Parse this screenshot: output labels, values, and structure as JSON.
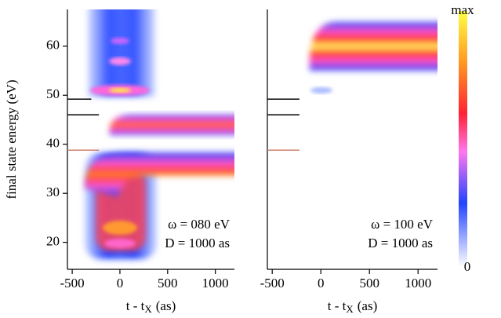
{
  "chart_data": [
    {
      "type": "heatmap",
      "ylabel": "final state energy (eV)",
      "xlabel": {
        "main": "t - t",
        "sub": "X",
        "unit": "(as)"
      },
      "xlim": [
        -550,
        1200
      ],
      "ylim": [
        14.5,
        67.5
      ],
      "xticks": [
        -500,
        0,
        500,
        1000
      ],
      "yticks": [
        20,
        30,
        40,
        50,
        60
      ],
      "annotations": [
        "ω = 080 eV",
        "D = 1000 as"
      ],
      "ref_lines": [
        {
          "y": 49.2,
          "x_end": -300,
          "color": "#000000"
        },
        {
          "y": 46,
          "x_end": -220,
          "color": "#000000"
        },
        {
          "y": 38.8,
          "x_end": -220,
          "color": "#d08070"
        }
      ]
    },
    {
      "type": "heatmap",
      "xlabel": {
        "main": "t - t",
        "sub": "X",
        "unit": "(as)"
      },
      "xlim": [
        -550,
        1200
      ],
      "ylim": [
        14.5,
        67.5
      ],
      "xticks": [
        -500,
        0,
        500,
        1000
      ],
      "annotations": [
        "ω = 100 eV",
        "D = 1000 as"
      ],
      "ref_lines": [
        {
          "y": 49.2,
          "x_end": -220,
          "color": "#000000"
        },
        {
          "y": 46,
          "x_end": -220,
          "color": "#000000"
        },
        {
          "y": 38.8,
          "x_end": -220,
          "color": "#d08070"
        }
      ],
      "colorbar": {
        "max_label": "max",
        "min_label": "0"
      }
    }
  ]
}
